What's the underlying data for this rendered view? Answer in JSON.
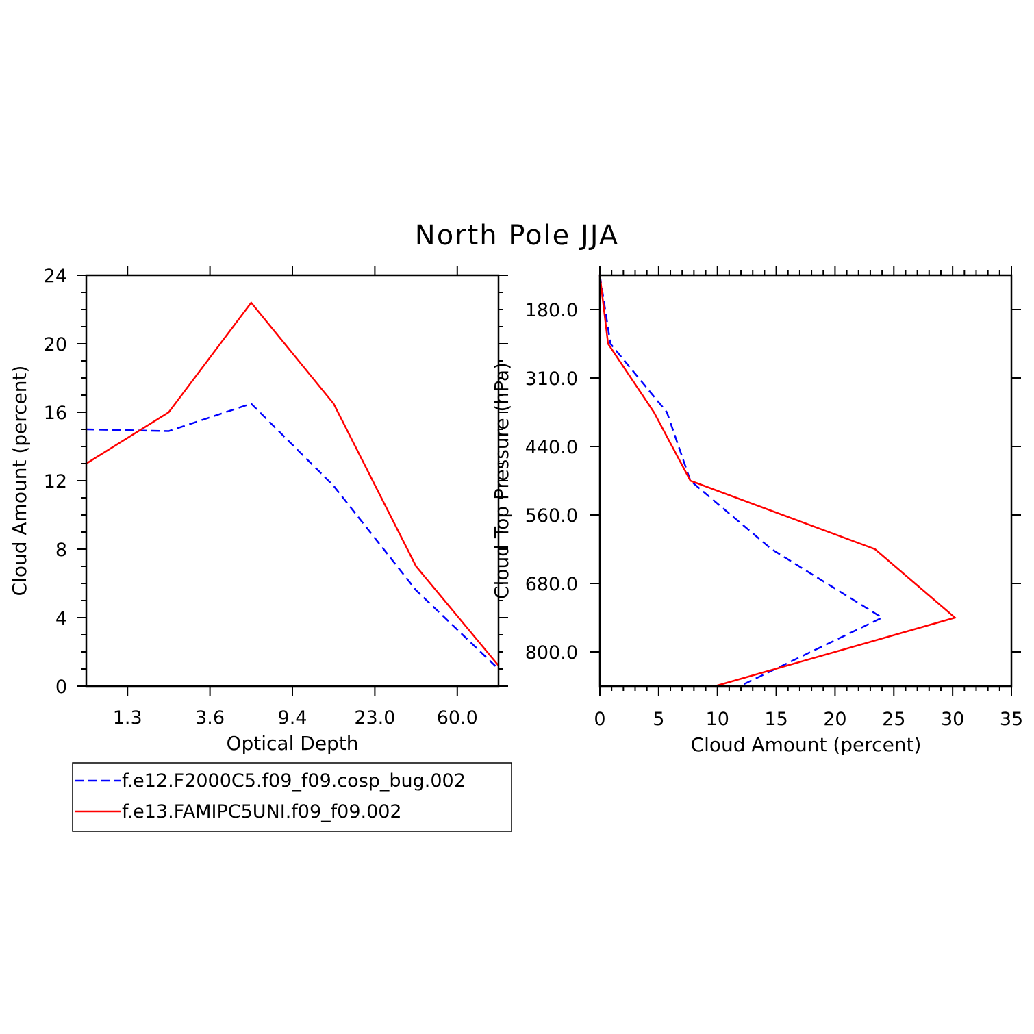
{
  "title": "North Pole JJA",
  "legend": {
    "entries": [
      {
        "label": "f.e12.F2000C5.f09_f09.cosp_bug.002",
        "color": "#0000ff",
        "dash": "dashed"
      },
      {
        "label": "f.e13.FAMIPC5UNI.f09_f09.002",
        "color": "#ff0000",
        "dash": "solid"
      }
    ]
  },
  "chart_data": [
    {
      "type": "line",
      "xlabel": "Optical Depth",
      "ylabel": "Cloud Amount (percent)",
      "xlim": [
        0,
        5
      ],
      "ylim": [
        0,
        24
      ],
      "xticks": [
        {
          "pos": 0.5,
          "label": "1.3"
        },
        {
          "pos": 1.5,
          "label": "3.6"
        },
        {
          "pos": 2.5,
          "label": "9.4"
        },
        {
          "pos": 3.5,
          "label": "23.0"
        },
        {
          "pos": 4.5,
          "label": "60.0"
        }
      ],
      "yticks": [
        0,
        4,
        8,
        12,
        16,
        20,
        24
      ],
      "series": [
        {
          "name": "f.e12.F2000C5.f09_f09.cosp_bug.002",
          "color": "#0000ff",
          "dash": "dashed",
          "x": [
            0,
            1,
            2,
            3,
            4,
            5
          ],
          "y": [
            15.0,
            14.9,
            16.5,
            11.7,
            5.6,
            1.0
          ]
        },
        {
          "name": "f.e13.FAMIPC5UNI.f09_f09.002",
          "color": "#ff0000",
          "dash": "solid",
          "x": [
            0,
            1,
            2,
            3,
            4,
            5
          ],
          "y": [
            13.0,
            16.0,
            22.4,
            16.5,
            7.0,
            1.2
          ]
        }
      ]
    },
    {
      "type": "line",
      "xlabel": "Cloud Amount (percent)",
      "ylabel": "Cloud Top Pressure (hPa)",
      "xlim": [
        0,
        35
      ],
      "ylim": [
        0,
        6
      ],
      "xticks": [
        0,
        5,
        10,
        15,
        20,
        25,
        30,
        35
      ],
      "yticks": [
        {
          "pos": 0.5,
          "label": "180.0"
        },
        {
          "pos": 1.5,
          "label": "310.0"
        },
        {
          "pos": 2.5,
          "label": "440.0"
        },
        {
          "pos": 3.5,
          "label": "560.0"
        },
        {
          "pos": 4.5,
          "label": "680.0"
        },
        {
          "pos": 5.5,
          "label": "800.0"
        }
      ],
      "series": [
        {
          "name": "f.e12.F2000C5.f09_f09.cosp_bug.002",
          "color": "#0000ff",
          "dash": "dashed",
          "x": [
            0.0,
            0.9,
            5.7,
            7.7,
            14.6,
            24.0,
            11.9
          ],
          "y": [
            0,
            1,
            2,
            3,
            4,
            5,
            6
          ]
        },
        {
          "name": "f.e13.FAMIPC5UNI.f09_f09.002",
          "color": "#ff0000",
          "dash": "solid",
          "x": [
            0.0,
            0.7,
            4.6,
            7.7,
            23.4,
            30.2,
            9.8
          ],
          "y": [
            0,
            1,
            2,
            3,
            4,
            5,
            6
          ]
        }
      ]
    }
  ]
}
